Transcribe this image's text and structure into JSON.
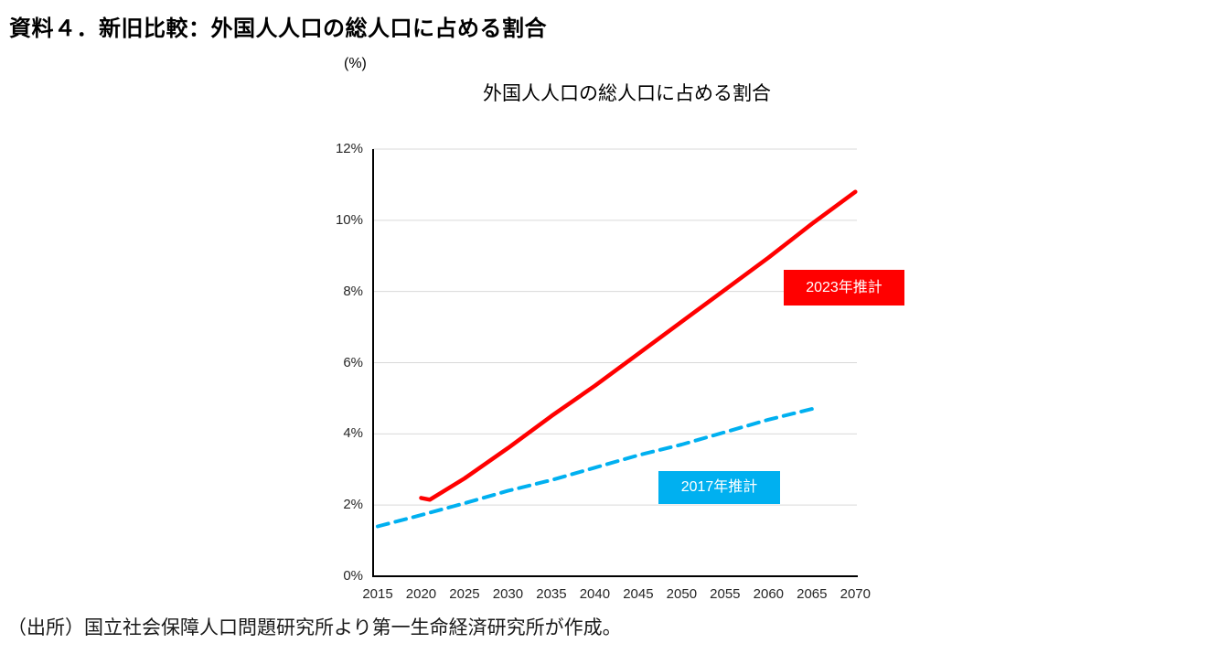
{
  "page": {
    "heading": "資料４．新旧比較：外国人人口の総人口に占める割合",
    "source_note": "（出所）国立社会保障人口問題研究所より第一生命経済研究所が作成。"
  },
  "chart_data": {
    "type": "line",
    "title": "外国人人口の総人口に占める割合",
    "unit_label": "(%)",
    "xlabel": "",
    "ylabel": "",
    "xlim": [
      2015,
      2070
    ],
    "ylim": [
      0,
      12
    ],
    "grid": "horizontal",
    "gridline_color": "#D9D9D9",
    "axis_color": "#000000",
    "legend_position": "labels-on-chart",
    "x_ticks": [
      2015,
      2020,
      2025,
      2030,
      2035,
      2040,
      2045,
      2050,
      2055,
      2060,
      2065,
      2070
    ],
    "y_ticks": [
      {
        "value": 0,
        "label": "0%"
      },
      {
        "value": 2,
        "label": "2%"
      },
      {
        "value": 4,
        "label": "4%"
      },
      {
        "value": 6,
        "label": "6%"
      },
      {
        "value": 8,
        "label": "8%"
      },
      {
        "value": 10,
        "label": "10%"
      },
      {
        "value": 12,
        "label": "12%"
      }
    ],
    "series": [
      {
        "name": "2023年推計",
        "color": "#FF0000",
        "line_style": "solid",
        "label_text_color": "#FFFFFF",
        "points": [
          [
            2020,
            2.2
          ],
          [
            2021,
            2.15
          ],
          [
            2025,
            2.75
          ],
          [
            2030,
            3.6
          ],
          [
            2035,
            4.5
          ],
          [
            2040,
            5.35
          ],
          [
            2045,
            6.25
          ],
          [
            2050,
            7.15
          ],
          [
            2055,
            8.05
          ],
          [
            2060,
            8.95
          ],
          [
            2065,
            9.9
          ],
          [
            2070,
            10.8
          ]
        ]
      },
      {
        "name": "2017年推計",
        "color": "#00B0F0",
        "line_style": "dashed",
        "label_text_color": "#FFFFFF",
        "points": [
          [
            2015,
            1.4
          ],
          [
            2020,
            1.72
          ],
          [
            2025,
            2.05
          ],
          [
            2030,
            2.4
          ],
          [
            2035,
            2.7
          ],
          [
            2040,
            3.05
          ],
          [
            2045,
            3.4
          ],
          [
            2050,
            3.7
          ],
          [
            2055,
            4.05
          ],
          [
            2060,
            4.4
          ],
          [
            2065,
            4.7
          ]
        ]
      }
    ]
  }
}
